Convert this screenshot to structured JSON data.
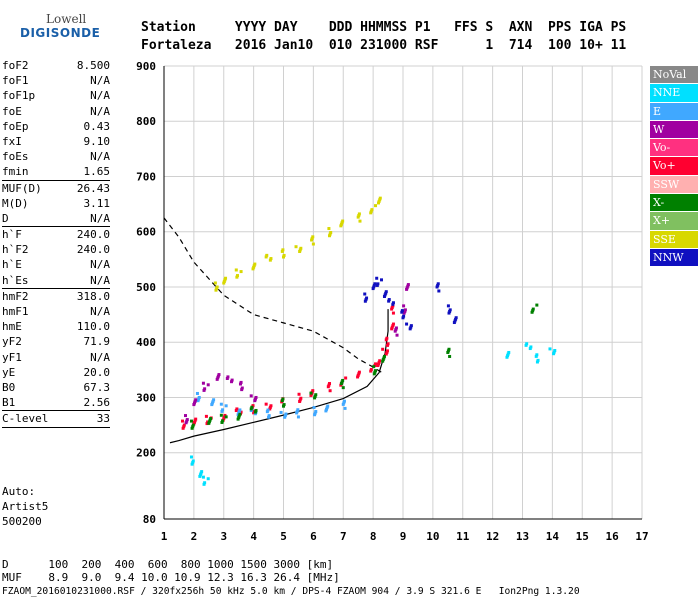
{
  "logo": {
    "line1": "Lowell",
    "line2": "DIGISONDE"
  },
  "header": {
    "row1": "Station     YYYY DAY    DDD HHMMSS P1   FFS S  AXN  PPS IGA PS",
    "row2": "Fortaleza   2016 Jan10  010 231000 RSF      1  714  100 10+ 11"
  },
  "params": [
    {
      "k": "foF2",
      "v": "8.500"
    },
    {
      "k": "foF1",
      "v": "N/A"
    },
    {
      "k": "foF1p",
      "v": "N/A"
    },
    {
      "k": "foE",
      "v": "N/A"
    },
    {
      "k": "foEp",
      "v": "0.43"
    },
    {
      "k": "fxI",
      "v": "9.10"
    },
    {
      "k": "foEs",
      "v": "N/A"
    },
    {
      "k": "fmin",
      "v": "1.65",
      "sep": true
    },
    {
      "k": "MUF(D)",
      "v": "26.43"
    },
    {
      "k": "M(D)",
      "v": "3.11"
    },
    {
      "k": "D",
      "v": "N/A",
      "sep": true
    },
    {
      "k": "h`F",
      "v": "240.0"
    },
    {
      "k": "h`F2",
      "v": "240.0"
    },
    {
      "k": "h`E",
      "v": "N/A"
    },
    {
      "k": "h`Es",
      "v": "N/A",
      "sep": true
    },
    {
      "k": "hmF2",
      "v": "318.0"
    },
    {
      "k": "hmF1",
      "v": "N/A"
    },
    {
      "k": "hmE",
      "v": "110.0"
    },
    {
      "k": "yF2",
      "v": "71.9"
    },
    {
      "k": "yF1",
      "v": "N/A"
    },
    {
      "k": "yE",
      "v": "20.0"
    },
    {
      "k": "B0",
      "v": "67.3"
    },
    {
      "k": "B1",
      "v": "2.56",
      "sep": true
    },
    {
      "k": "C-level",
      "v": "33",
      "sep": true
    }
  ],
  "auto": [
    "Auto:",
    "Artist5",
    "500200"
  ],
  "footer": {
    "line1": "D      100  200  400  600  800 1000 1500 3000 [km]",
    "line2": "MUF    8.9  9.0  9.4 10.0 10.9 12.3 16.3 26.4 [MHz]",
    "line3": "FZAOM_2016010231000.RSF / 320fx256h 50 kHz 5.0 km / DPS-4 FZAOM 904 / 3.9 S 321.6 E   Ion2Png 1.3.20"
  },
  "legend": [
    {
      "label": "NoVal",
      "color": "#888888"
    },
    {
      "label": "NNE",
      "color": "#00e0ff"
    },
    {
      "label": "E",
      "color": "#40a8ff"
    },
    {
      "label": "W",
      "color": "#a000a0"
    },
    {
      "label": "Vo-",
      "color": "#ff3080"
    },
    {
      "label": "Vo+",
      "color": "#ff0030"
    },
    {
      "label": "SSW",
      "color": "#ffb0b0"
    },
    {
      "label": "X-",
      "color": "#008000"
    },
    {
      "label": "X+",
      "color": "#80c060"
    },
    {
      "label": "SSE",
      "color": "#d8d800"
    },
    {
      "label": "NNW",
      "color": "#1010c0"
    }
  ],
  "chart_data": {
    "type": "scatter",
    "xlim": [
      1,
      17
    ],
    "ylim": [
      80,
      900
    ],
    "x_ticks": [
      1,
      2,
      3,
      4,
      5,
      6,
      7,
      8,
      9,
      10,
      11,
      12,
      13,
      14,
      15,
      16,
      17
    ],
    "y_ticks": [
      80,
      200,
      300,
      400,
      500,
      600,
      700,
      800,
      900
    ],
    "grid": true,
    "series": [
      {
        "name": "Vo+",
        "color": "#ff0030",
        "x": [
          1.7,
          2.0,
          2.5,
          3.0,
          3.5,
          4.0,
          4.5,
          5.0,
          5.5,
          6.0,
          6.5,
          7.0,
          7.5,
          8.0,
          8.2,
          8.4,
          8.5,
          8.6,
          8.7
        ],
        "y": [
          250,
          255,
          260,
          266,
          272,
          278,
          285,
          292,
          300,
          308,
          318,
          328,
          340,
          355,
          365,
          380,
          400,
          430,
          460
        ]
      },
      {
        "name": "SSE",
        "color": "#d8d800",
        "x": [
          2.8,
          3.0,
          3.5,
          4.0,
          4.5,
          5.0,
          5.5,
          6.0,
          6.5,
          7.0,
          7.5,
          8.0,
          8.2
        ],
        "y": [
          500,
          510,
          525,
          540,
          550,
          560,
          570,
          585,
          600,
          615,
          625,
          640,
          655
        ]
      },
      {
        "name": "E",
        "color": "#40a8ff",
        "x": [
          2.2,
          2.6,
          3.0,
          3.5,
          4.0,
          4.5,
          5.0,
          5.5,
          6.0,
          6.5,
          7.0
        ],
        "y": [
          300,
          290,
          282,
          276,
          272,
          270,
          270,
          272,
          276,
          280,
          286
        ]
      },
      {
        "name": "W",
        "color": "#a000a0",
        "x": [
          1.8,
          2.0,
          2.4,
          2.8,
          3.2,
          3.6,
          4.0,
          8.8,
          9.0,
          9.2
        ],
        "y": [
          260,
          290,
          320,
          340,
          330,
          320,
          300,
          420,
          460,
          500
        ]
      },
      {
        "name": "NNW",
        "color": "#1010c0",
        "x": [
          7.8,
          8.0,
          8.2,
          8.4,
          8.6,
          9.0,
          9.2,
          10.2,
          10.5,
          10.8
        ],
        "y": [
          480,
          500,
          510,
          490,
          470,
          450,
          430,
          500,
          460,
          440
        ]
      },
      {
        "name": "X-",
        "color": "#008000",
        "x": [
          2.0,
          2.5,
          3.0,
          3.5,
          4.0,
          5.0,
          6.0,
          7.0,
          8.0,
          8.4,
          10.5,
          13.4
        ],
        "y": [
          250,
          256,
          262,
          268,
          275,
          290,
          305,
          325,
          350,
          370,
          380,
          460
        ]
      },
      {
        "name": "NNE",
        "color": "#00e0ff",
        "x": [
          2.0,
          2.2,
          2.4,
          12.5,
          13.2,
          13.5,
          14.0
        ],
        "y": [
          185,
          160,
          150,
          380,
          390,
          370,
          385
        ]
      }
    ],
    "lines": [
      {
        "name": "model-profile",
        "x": [
          1.2,
          1.5,
          2.0,
          3.0,
          4.0,
          5.0,
          6.0,
          7.0,
          7.8,
          8.2,
          8.4,
          8.5,
          8.5
        ],
        "y": [
          218,
          222,
          230,
          242,
          255,
          268,
          282,
          298,
          320,
          345,
          380,
          420,
          460
        ]
      },
      {
        "name": "dashed-muf",
        "x": [
          1.0,
          1.5,
          2.0,
          3.0,
          4.0,
          5.0,
          6.0,
          7.0,
          7.5,
          8.0,
          8.3
        ],
        "y": [
          625,
          590,
          545,
          485,
          450,
          435,
          420,
          390,
          370,
          355,
          345
        ]
      }
    ]
  }
}
